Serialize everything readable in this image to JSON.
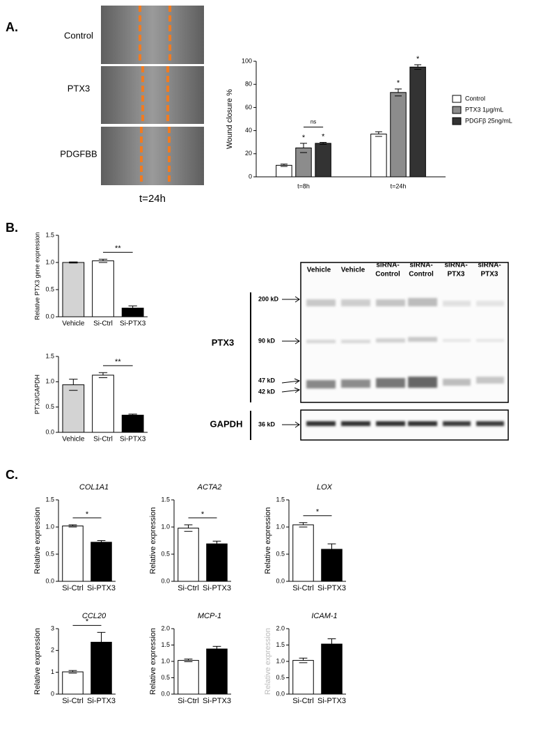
{
  "panels": {
    "A": {
      "label": "A.",
      "images": [
        "Control",
        "PTX3",
        "PDGFBB"
      ],
      "time": "t=24h"
    },
    "B": {
      "label": "B.",
      "blot": {
        "lanes": [
          [
            "Vehicle"
          ],
          [
            "Vehicle"
          ],
          [
            "siRNA-",
            "Control"
          ],
          [
            "siRNA-",
            "Control"
          ],
          [
            "siRNA-",
            "PTX3"
          ],
          [
            "siRNA-",
            "PTX3"
          ]
        ],
        "rows": [
          "PTX3",
          "GAPDH"
        ],
        "markers": [
          "200 kD",
          "90 kD",
          "47 kD",
          "42 kD",
          "36 kD"
        ]
      }
    },
    "C": {
      "label": "C."
    }
  },
  "chart_data": [
    {
      "type": "bar",
      "ylabel": "Wound closure %",
      "categories": [
        "t=8h",
        "t=24h"
      ],
      "series": [
        {
          "name": "Control",
          "color": "#ffffff",
          "values": [
            10,
            37
          ],
          "errors": [
            1,
            2
          ]
        },
        {
          "name": "PTX3 1μg/mL",
          "color": "#8c8c8c",
          "values": [
            25,
            73
          ],
          "errors": [
            4,
            3
          ],
          "significance": [
            "*",
            "*"
          ]
        },
        {
          "name": "PDGFβ 25ng/mL",
          "color": "#333333",
          "values": [
            29,
            95
          ],
          "errors": [
            0.8,
            2
          ],
          "significance": [
            "*",
            "*"
          ]
        }
      ],
      "ylim": [
        0,
        100
      ],
      "yticks": [
        0,
        20,
        40,
        60,
        80,
        100
      ],
      "bracket": "ns",
      "legend": "right"
    },
    {
      "type": "bar",
      "ylabel": "Relative PTX3 gene expression",
      "categories": [
        "Vehicle",
        "Si-Ctrl",
        "Si-PTX3"
      ],
      "values": [
        1.0,
        1.03,
        0.16
      ],
      "errors": [
        0.01,
        0.03,
        0.04
      ],
      "colors": [
        "#d3d3d3",
        "#ffffff",
        "#000000"
      ],
      "ylim": [
        0,
        1.5
      ],
      "yticks": [
        {
          "value": 0,
          "label": "0.0"
        },
        0.5,
        {
          "value": 1,
          "label": "1.0"
        },
        1.5
      ],
      "bracket": "**"
    },
    {
      "type": "bar",
      "ylabel": "PTX3/GAPDH",
      "categories": [
        "Vehicle",
        "Si-Ctrl",
        "Si-PTX3"
      ],
      "values": [
        0.94,
        1.13,
        0.34
      ],
      "errors": [
        0.11,
        0.05,
        0.02
      ],
      "colors": [
        "#d3d3d3",
        "#ffffff",
        "#000000"
      ],
      "ylim": [
        0,
        1.5
      ],
      "yticks": [
        {
          "value": 0,
          "label": "0.0"
        },
        0.5,
        {
          "value": 1,
          "label": "1.0"
        },
        1.5
      ],
      "bracket": "**"
    },
    {
      "type": "bar",
      "title": "COL1A1",
      "ylabel": "Relative expression",
      "categories": [
        "Si-Ctrl",
        "Si-PTX3"
      ],
      "values": [
        1.02,
        0.72
      ],
      "errors": [
        0.02,
        0.03
      ],
      "colors": [
        "#ffffff",
        "#000000"
      ],
      "ylim": [
        0,
        1.5
      ],
      "yticks": [
        {
          "value": 0,
          "label": "0.0"
        },
        0.5,
        {
          "value": 1,
          "label": "1.0"
        },
        1.5
      ],
      "bracket": "*"
    },
    {
      "type": "bar",
      "title": "ACTA2",
      "ylabel": "Relative expression",
      "categories": [
        "Si-Ctrl",
        "Si-PTX3"
      ],
      "values": [
        0.98,
        0.69
      ],
      "errors": [
        0.06,
        0.05
      ],
      "colors": [
        "#ffffff",
        "#000000"
      ],
      "ylim": [
        0,
        1.5
      ],
      "yticks": [
        {
          "value": 0,
          "label": "0.0"
        },
        0.5,
        {
          "value": 1,
          "label": "1.0"
        },
        1.5
      ],
      "bracket": "*"
    },
    {
      "type": "bar",
      "title": "LOX",
      "ylabel": "Relative expression",
      "categories": [
        "Si-Ctrl",
        "Si-PTX3"
      ],
      "values": [
        1.04,
        0.59
      ],
      "errors": [
        0.04,
        0.1
      ],
      "colors": [
        "#ffffff",
        "#000000"
      ],
      "ylim": [
        0,
        1.5
      ],
      "yticks": [
        {
          "value": 0,
          "label": "0.0"
        },
        0.5,
        {
          "value": 1,
          "label": "1.0"
        },
        1.5
      ],
      "bracket": "*"
    },
    {
      "type": "bar",
      "title": "CCL20",
      "ylabel": "Relative expression",
      "categories": [
        "Si-Ctrl",
        "Si-PTX3"
      ],
      "values": [
        1.02,
        2.38
      ],
      "errors": [
        0.06,
        0.45
      ],
      "colors": [
        "#ffffff",
        "#000000"
      ],
      "ylim": [
        0,
        3
      ],
      "yticks": [
        0,
        1,
        2,
        3
      ],
      "bracket": "*"
    },
    {
      "type": "bar",
      "title": "MCP-1",
      "ylabel": "Relative expression",
      "categories": [
        "Si-Ctrl",
        "Si-PTX3"
      ],
      "values": [
        1.03,
        1.38
      ],
      "errors": [
        0.04,
        0.08
      ],
      "colors": [
        "#ffffff",
        "#000000"
      ],
      "ylim": [
        0,
        2
      ],
      "yticks": [
        {
          "value": 0,
          "label": "0.0"
        },
        0.5,
        {
          "value": 1,
          "label": "1.0"
        },
        1.5,
        {
          "value": 2,
          "label": "2.0"
        }
      ]
    },
    {
      "type": "bar",
      "title": "ICAM-1",
      "ylabel": "Relative expression",
      "categories": [
        "Si-Ctrl",
        "Si-PTX3"
      ],
      "values": [
        1.03,
        1.53
      ],
      "errors": [
        0.07,
        0.16
      ],
      "colors": [
        "#ffffff",
        "#000000"
      ],
      "ylim": [
        0,
        2
      ],
      "yticks": [
        {
          "value": 0,
          "label": "0.0"
        },
        0.5,
        {
          "value": 1,
          "label": "1.0"
        },
        1.5,
        {
          "value": 2,
          "label": "2.0"
        }
      ]
    }
  ]
}
